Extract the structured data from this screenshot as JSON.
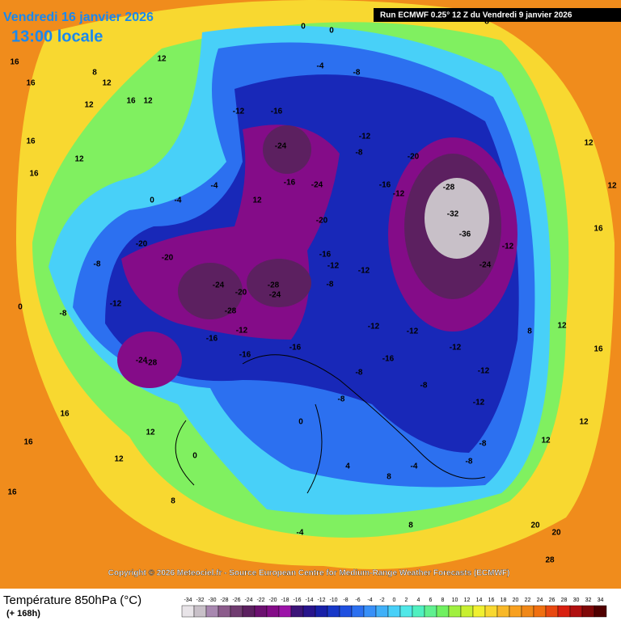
{
  "header": {
    "date": "Vendredi 16 janvier 2026",
    "time": "13:00 locale",
    "run": "Run ECMWF 0.25° 12 Z du Vendredi 9 janvier 2026"
  },
  "map": {
    "labels": [
      "16",
      "16",
      "12",
      "12",
      "16",
      "12",
      "12",
      "8",
      "16",
      "12",
      "16",
      "0",
      "-4",
      "-4",
      "12",
      "0",
      "0",
      "-4",
      "-8",
      "-12",
      "-16",
      "-24",
      "-24",
      "-16",
      "-20",
      "-12",
      "-8",
      "-16",
      "-12",
      "-20",
      "-28",
      "-32",
      "-36",
      "-24",
      "-12",
      "-20",
      "-20",
      "-8",
      "-12",
      "-8",
      "0",
      "-24",
      "-20",
      "-28",
      "-24",
      "-28",
      "-16",
      "-12",
      "-8",
      "-12",
      "-12",
      "-16",
      "-16",
      "-16",
      "-24",
      "-28",
      "-12",
      "-12",
      "-12",
      "-16",
      "-12",
      "-8",
      "-8",
      "-12",
      "-8",
      "0",
      "-8",
      "-8",
      "-4",
      "4",
      "8",
      "-4",
      "8",
      "16",
      "16",
      "12",
      "12",
      "0",
      "8",
      "16",
      "20",
      "28",
      "20",
      "12",
      "12",
      "16",
      "12",
      "8",
      "12",
      "12",
      "16",
      "8"
    ],
    "credit": "Copyright © 2026 Meteociel.fr - Source European Centre for Medium-Range Weather Forecasts (ECMWF)"
  },
  "legend": {
    "title": "Température 850hPa (°C)",
    "lead": "(+ 168h)",
    "ticks": [
      -34,
      -32,
      -30,
      -28,
      -26,
      -24,
      -22,
      -20,
      -18,
      -16,
      -14,
      -12,
      -10,
      -8,
      -6,
      -4,
      -2,
      0,
      2,
      4,
      6,
      8,
      10,
      12,
      14,
      16,
      18,
      20,
      22,
      24,
      26,
      28,
      30,
      32,
      34
    ],
    "colors": [
      "#e8e4e8",
      "#c8c0c8",
      "#a888b0",
      "#8c5c8c",
      "#703c70",
      "#5c2060",
      "#6c1070",
      "#840c88",
      "#9c14a8",
      "#3c1478",
      "#28148c",
      "#1820a8",
      "#1838c8",
      "#2050e0",
      "#2c70f0",
      "#3890f8",
      "#40b0f8",
      "#48d0f8",
      "#50e8e8",
      "#50f0c0",
      "#60f090",
      "#70f060",
      "#a0f040",
      "#c8f030",
      "#f0f030",
      "#f8d830",
      "#f8b828",
      "#f8a020",
      "#f08818",
      "#f07010",
      "#e84810",
      "#d82010",
      "#b01010",
      "#800808",
      "#500000"
    ]
  }
}
